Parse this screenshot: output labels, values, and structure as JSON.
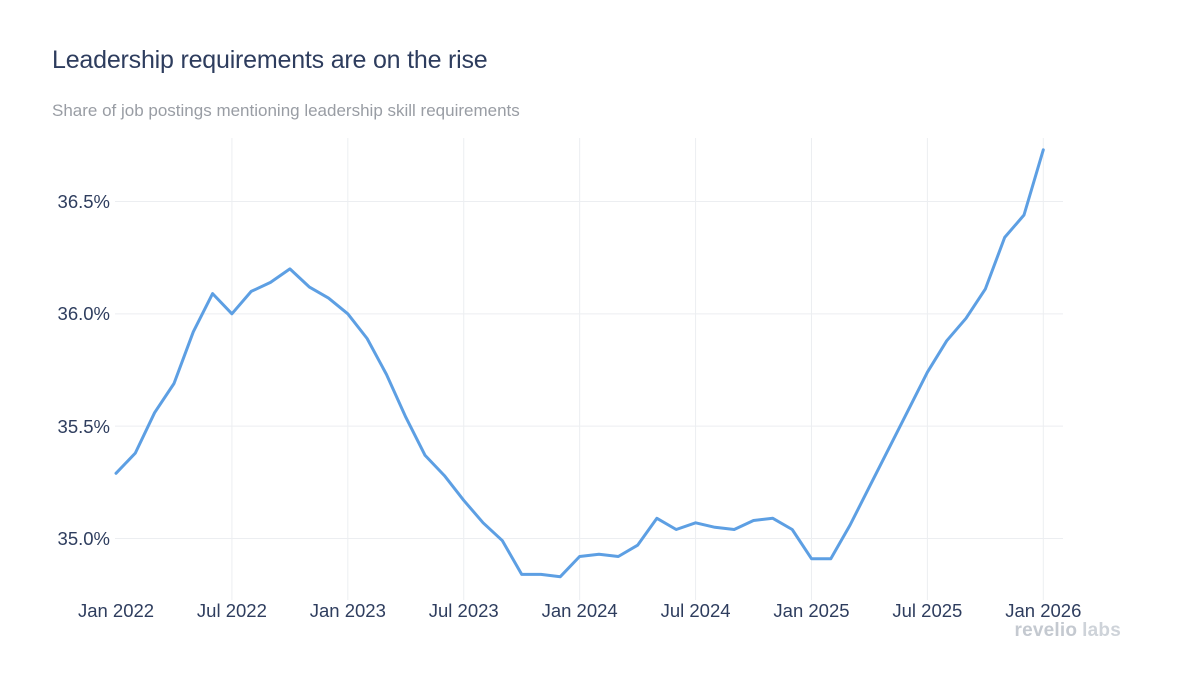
{
  "header": {
    "title": "Leadership requirements are on the rise",
    "subtitle": "Share of job postings mentioning leadership skill requirements"
  },
  "branding": {
    "wordmark_primary": "revelio",
    "wordmark_secondary": "labs"
  },
  "chart_data": {
    "type": "line",
    "title": "Leadership requirements are on the rise",
    "subtitle": "Share of job postings mentioning leadership skill requirements",
    "xlabel": "",
    "ylabel": "",
    "legend_position": "none",
    "grid": true,
    "x_unit": "month",
    "y_unit": "%",
    "x": [
      "Jan 2022",
      "Feb 2022",
      "Mar 2022",
      "Apr 2022",
      "May 2022",
      "Jun 2022",
      "Jul 2022",
      "Aug 2022",
      "Sep 2022",
      "Oct 2022",
      "Nov 2022",
      "Dec 2022",
      "Jan 2023",
      "Feb 2023",
      "Mar 2023",
      "Apr 2023",
      "May 2023",
      "Jun 2023",
      "Jul 2023",
      "Aug 2023",
      "Sep 2023",
      "Oct 2023",
      "Nov 2023",
      "Dec 2023",
      "Jan 2024",
      "Feb 2024",
      "Mar 2024",
      "Apr 2024",
      "May 2024",
      "Jun 2024",
      "Jul 2024",
      "Aug 2024",
      "Sep 2024",
      "Oct 2024",
      "Nov 2024",
      "Dec 2024",
      "Jan 2025",
      "Feb 2025",
      "Mar 2025",
      "Apr 2025",
      "May 2025",
      "Jun 2025",
      "Jul 2025",
      "Aug 2025",
      "Sep 2025",
      "Oct 2025",
      "Nov 2025",
      "Dec 2025",
      "Jan 2026"
    ],
    "values": [
      35.29,
      35.38,
      35.56,
      35.69,
      35.92,
      36.09,
      36.0,
      36.1,
      36.14,
      36.2,
      36.12,
      36.07,
      36.0,
      35.89,
      35.73,
      35.54,
      35.37,
      35.28,
      35.17,
      35.07,
      34.99,
      34.84,
      34.84,
      34.83,
      34.92,
      34.93,
      34.92,
      34.97,
      35.09,
      35.04,
      35.07,
      35.05,
      35.04,
      35.08,
      35.09,
      35.04,
      34.91,
      34.91,
      35.06,
      35.23,
      35.4,
      35.57,
      35.74,
      35.88,
      35.98,
      36.11,
      36.34,
      36.44,
      36.73
    ],
    "x_tick_labels": [
      "Jan 2022",
      "Jul 2022",
      "Jan 2023",
      "Jul 2023",
      "Jan 2024",
      "Jul 2024",
      "Jan 2025",
      "Jul 2025",
      "Jan 2026"
    ],
    "y_ticks": [
      35.0,
      35.5,
      36.0,
      36.5
    ],
    "y_tick_labels": [
      "35.0%",
      "35.5%",
      "36.0%",
      "36.5%"
    ],
    "ylim": [
      34.78,
      36.78
    ],
    "colors": {
      "line": "#5d9fe3",
      "grid": "#eceef1",
      "title": "#2e3d5e",
      "subtitle": "#999da4",
      "tick_labels": "#2e3d5e",
      "background": "#ffffff",
      "logo": "#c4c9d0"
    }
  }
}
